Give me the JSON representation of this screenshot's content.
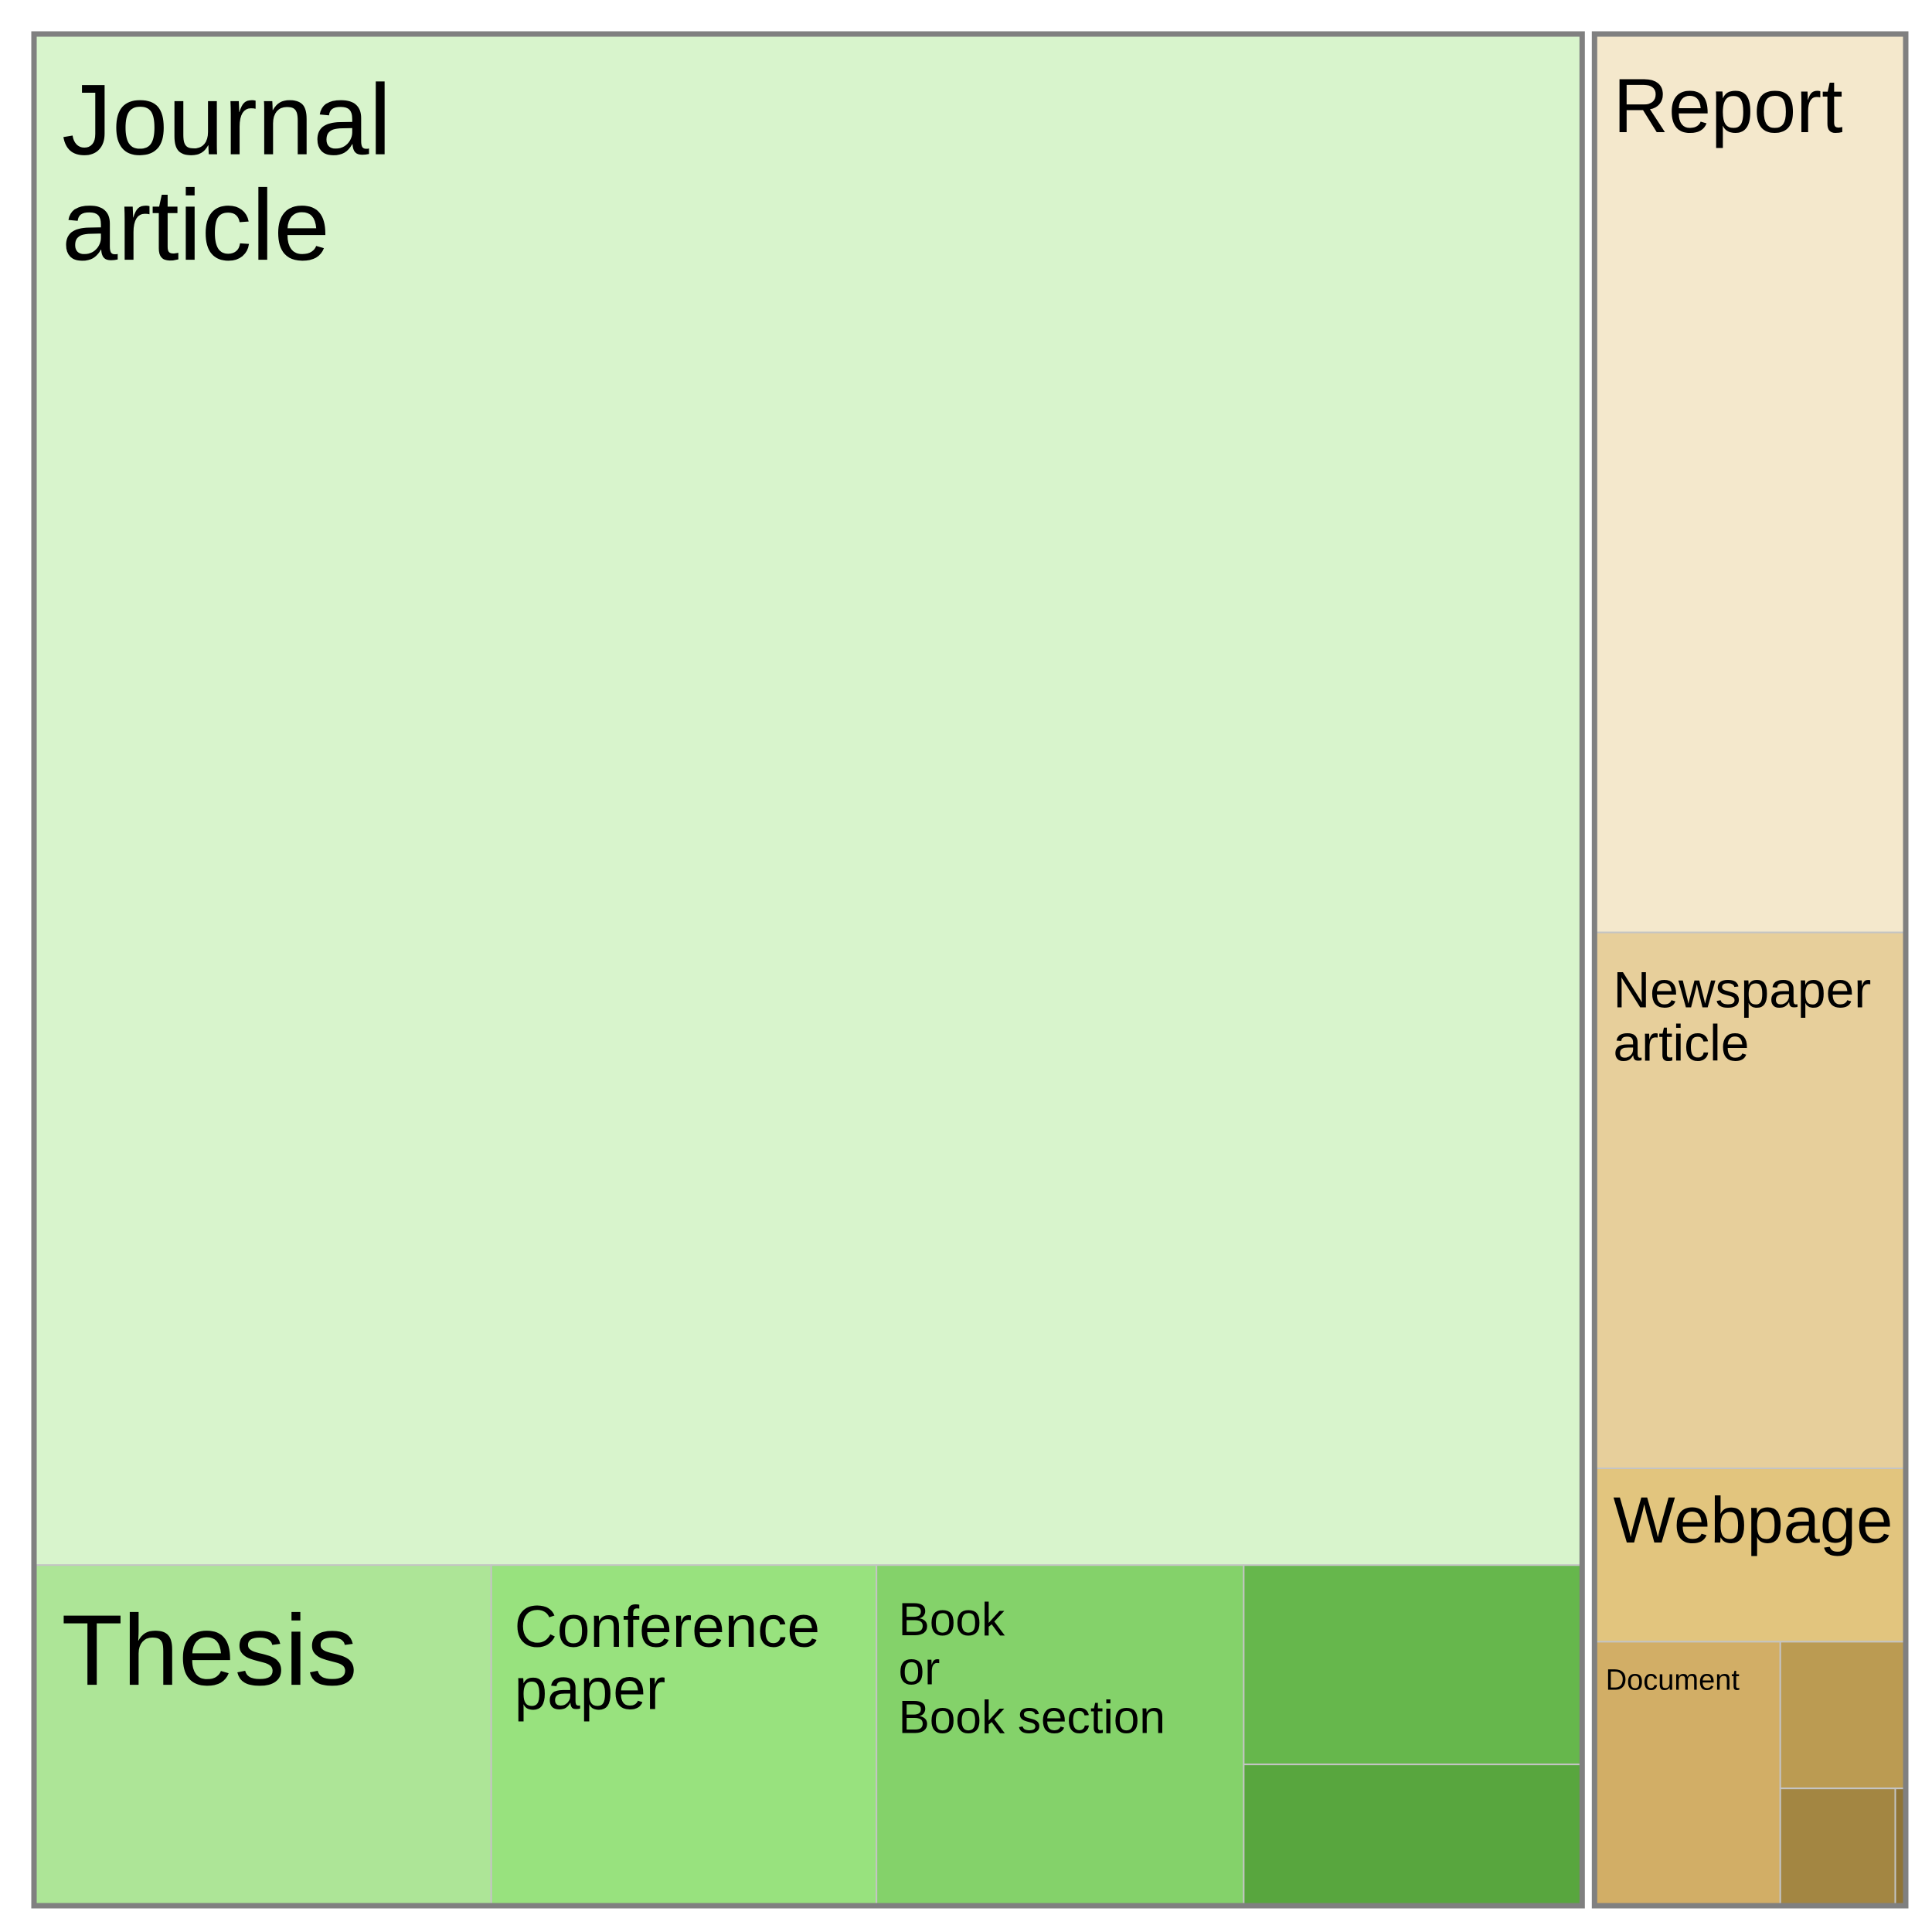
{
  "chart_data": {
    "type": "treemap",
    "title": "",
    "border_color": "#808080",
    "groups": [
      {
        "color_family": "green",
        "items": [
          {
            "label": "Journal\narticle",
            "value": 1933,
            "color": "#d8f4cc"
          },
          {
            "label": "Thesis",
            "value": 127,
            "color": "#ade597"
          },
          {
            "label": "Conference\npaper",
            "value": 107,
            "color": "#98e27e"
          },
          {
            "label": "Book\nor\nBook section",
            "value": 102,
            "color": "#84d26a"
          },
          {
            "label": "",
            "value": 55,
            "color": "#66b74c"
          },
          {
            "label": "",
            "value": 39,
            "color": "#58a63e"
          }
        ]
      },
      {
        "color_family": "tan",
        "items": [
          {
            "label": "Report",
            "value": 228,
            "color": "#f4e8cc"
          },
          {
            "label": "Newspaper\narticle",
            "value": 136,
            "color": "#e7cf9b"
          },
          {
            "label": "Webpage",
            "value": 44,
            "color": "#e2c57e"
          },
          {
            "label": "Document",
            "value": 40,
            "color": "#d2ae66"
          },
          {
            "label": "",
            "value": 15,
            "color": "#bb9b52"
          },
          {
            "label": "",
            "value": 11,
            "color": "#a38642"
          },
          {
            "label": "",
            "value": 1,
            "color": "#8f7436"
          }
        ]
      }
    ]
  }
}
